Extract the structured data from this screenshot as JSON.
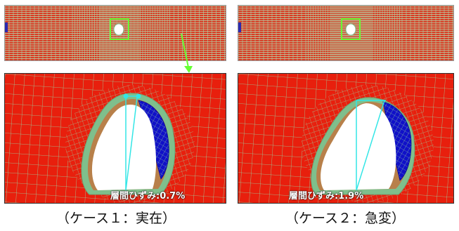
{
  "panels": [
    {
      "id": "case1",
      "strain_label": "層間ひずみ:0.7%",
      "caption": "（ケース１：実在）"
    },
    {
      "id": "case2",
      "strain_label": "層間ひずみ:1.9%",
      "caption": "（ケース２：急変）"
    }
  ],
  "colors": {
    "mesh_red": "#e81f0d",
    "mesh_line": "#9bd4a0",
    "damage_blue": "#1010c8",
    "liner_brown": "#b8804a",
    "liner_green": "#7fbf8c",
    "highlight_green": "#66ff33",
    "measure_cyan": "#33e6e6"
  }
}
